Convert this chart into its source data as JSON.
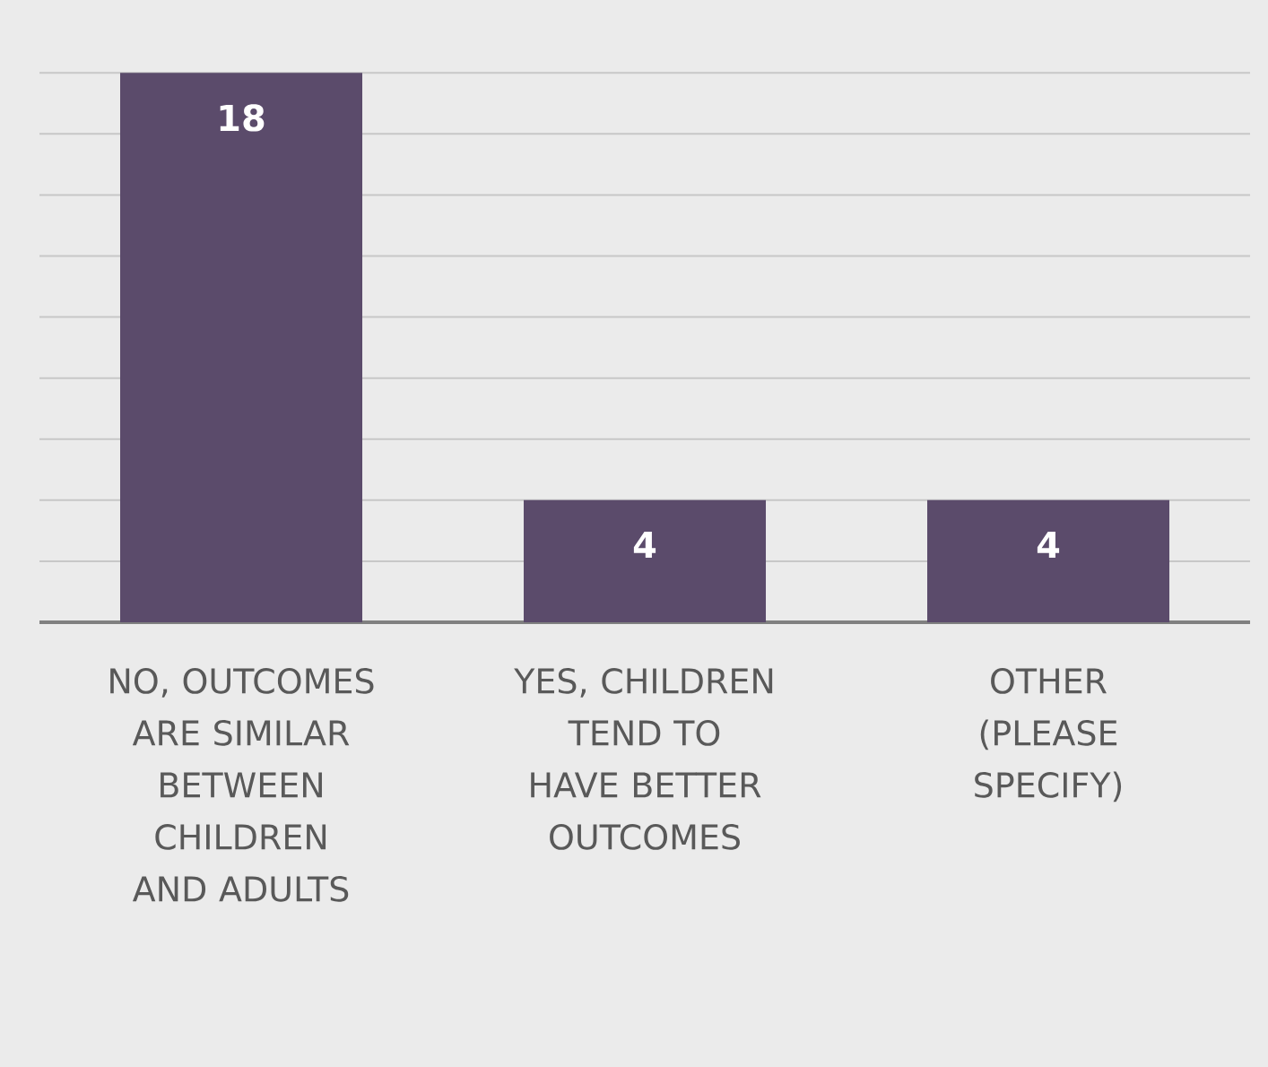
{
  "chart_data": {
    "type": "bar",
    "categories": [
      "NO, OUTCOMES ARE SIMILAR BETWEEN CHILDREN AND ADULTS",
      "YES, CHILDREN TEND TO HAVE BETTER OUTCOMES",
      "OTHER (PLEASE SPECIFY)"
    ],
    "values": [
      18,
      4,
      4
    ],
    "color": "#5b4b6b",
    "grid": "y",
    "data_labels": true
  }
}
